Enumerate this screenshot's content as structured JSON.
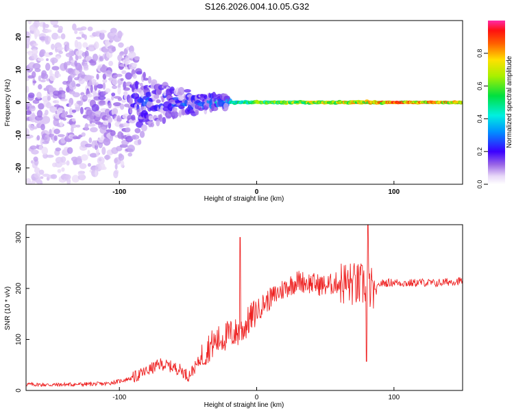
{
  "title": "S126.2026.004.10.05.G32",
  "chart_data": [
    {
      "type": "heatmap",
      "xlabel": "Height of straight line (km)",
      "ylabel": "Frequency (Hz)",
      "xlim": [
        -168,
        150
      ],
      "ylim": [
        -25,
        25
      ],
      "xticks": [
        -100,
        0,
        100
      ],
      "yticks": [
        -20,
        -10,
        0,
        10,
        20
      ],
      "colorbar": {
        "label": "Normalized spectral amplitude",
        "range": [
          0,
          1
        ],
        "ticks": [
          "0.0",
          "0.2",
          "0.4",
          "0.6",
          "0.8"
        ]
      },
      "description_points": [
        {
          "x": -150,
          "spread_hz": 25,
          "peak": 0.12
        },
        {
          "x": -100,
          "spread_hz": 22,
          "peak": 0.15
        },
        {
          "x": -80,
          "spread_hz": 8,
          "peak": 0.25
        },
        {
          "x": -60,
          "spread_hz": 4,
          "peak": 0.3
        },
        {
          "x": -40,
          "spread_hz": 3,
          "peak": 0.3
        },
        {
          "x": -20,
          "spread_hz": 1.5,
          "peak": 0.5
        },
        {
          "x": 0,
          "spread_hz": 1.2,
          "peak": 0.7
        },
        {
          "x": 40,
          "spread_hz": 1.2,
          "peak": 0.8
        },
        {
          "x": 80,
          "spread_hz": 1.5,
          "peak": 0.85
        },
        {
          "x": 100,
          "spread_hz": 0.8,
          "peak": 0.95
        },
        {
          "x": 150,
          "spread_hz": 0.8,
          "peak": 0.9
        }
      ]
    },
    {
      "type": "line",
      "xlabel": "Height of straight line (km)",
      "ylabel": "SNR (10 * v/v)",
      "xlim": [
        -168,
        150
      ],
      "ylim": [
        0,
        325
      ],
      "xticks": [
        -100,
        0,
        100
      ],
      "yticks": [
        0,
        100,
        200,
        300
      ],
      "color": "#ee2222",
      "series": [
        {
          "name": "SNR",
          "x": [
            -168,
            -150,
            -130,
            -110,
            -100,
            -90,
            -80,
            -70,
            -60,
            -55,
            -50,
            -45,
            -40,
            -35,
            -30,
            -20,
            -12,
            -10,
            -5,
            0,
            5,
            10,
            20,
            30,
            40,
            50,
            60,
            70,
            75,
            80,
            83,
            86,
            90,
            100,
            110,
            120,
            130,
            140,
            150
          ],
          "values": [
            12,
            11,
            12,
            13,
            18,
            25,
            38,
            52,
            45,
            40,
            28,
            45,
            65,
            85,
            95,
            110,
            115,
            120,
            140,
            155,
            170,
            180,
            200,
            215,
            210,
            205,
            212,
            208,
            205,
            210,
            200,
            190,
            210,
            212,
            210,
            212,
            210,
            213,
            215
          ]
        }
      ],
      "spikes": [
        {
          "x": -12,
          "value": 300
        },
        {
          "x": 81,
          "value": 325
        },
        {
          "x": 80,
          "value": 57
        }
      ]
    }
  ]
}
